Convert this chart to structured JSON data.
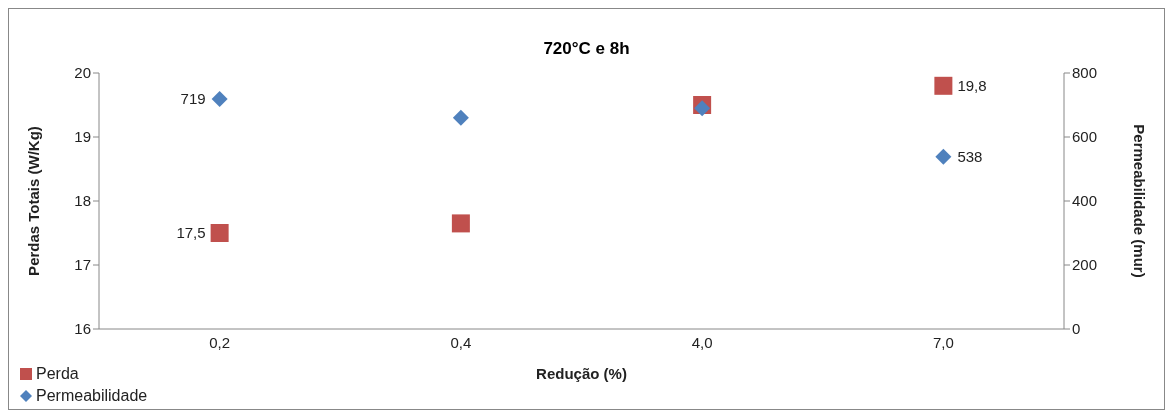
{
  "chart_data": {
    "type": "scatter",
    "title": "720°C e 8h",
    "xlabel": "Redução (%)",
    "ylabel": "Perdas Totais (W/Kg)",
    "y2label": "Permeabilidade (mur)",
    "categories": [
      "0,2",
      "0,4",
      "4,0",
      "7,0"
    ],
    "series": [
      {
        "name": "Perda",
        "color": "#c0504d",
        "marker": "square",
        "values": [
          17.5,
          17.65,
          19.5,
          19.8
        ],
        "value_labels": [
          "17,5",
          null,
          null,
          "19,8"
        ]
      },
      {
        "name": "Permeabilidade",
        "color": "#4f81bd",
        "marker": "diamond",
        "axis": "y2",
        "values": [
          719,
          660,
          690,
          538
        ],
        "value_labels": [
          "719",
          null,
          null,
          "538"
        ]
      }
    ],
    "ylim": [
      16,
      20
    ],
    "yticks": [
      16,
      17,
      18,
      19,
      20
    ],
    "y2lim": [
      0,
      800
    ],
    "y2ticks": [
      0,
      200,
      400,
      600,
      800
    ],
    "legend": "bottom left"
  }
}
